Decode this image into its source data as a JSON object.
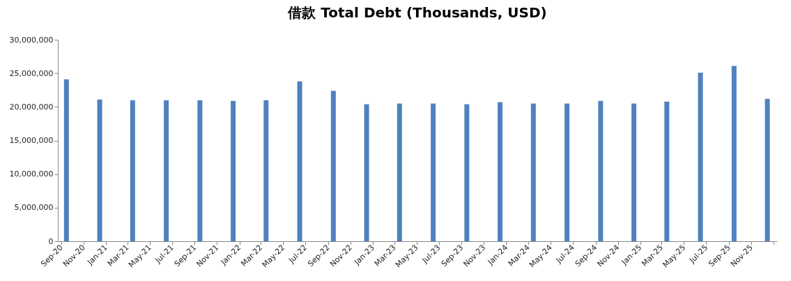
{
  "chart_data": {
    "type": "bar",
    "title": "借款 Total Debt (Thousands, USD)",
    "x": [
      "2020-09-15",
      "2020-12-15",
      "2021-03-15",
      "2021-06-15",
      "2021-09-15",
      "2021-12-15",
      "2022-03-15",
      "2022-06-15",
      "2022-09-15",
      "2022-12-15",
      "2023-03-15",
      "2023-06-15",
      "2023-09-15",
      "2023-12-15",
      "2024-03-15",
      "2024-06-15",
      "2024-09-15",
      "2024-12-15",
      "2025-03-15",
      "2025-06-15",
      "2025-09-15",
      "2025-12-15"
    ],
    "values": [
      24100000,
      21100000,
      21000000,
      21000000,
      21000000,
      20900000,
      21000000,
      23800000,
      22400000,
      20400000,
      20500000,
      20500000,
      20400000,
      20700000,
      20500000,
      20500000,
      20900000,
      20500000,
      20800000,
      25100000,
      26100000,
      21200000
    ],
    "color": "#4f81bd",
    "xlim": [
      "2020-09",
      "2026-01"
    ],
    "xticks": [
      {
        "value": "2020-09",
        "label": "Sep-20"
      },
      {
        "value": "2020-11",
        "label": "Nov-20"
      },
      {
        "value": "2021-01",
        "label": "Jan-21"
      },
      {
        "value": "2021-03",
        "label": "Mar-21"
      },
      {
        "value": "2021-05",
        "label": "May-21"
      },
      {
        "value": "2021-07",
        "label": "Jul-21"
      },
      {
        "value": "2021-09",
        "label": "Sep-21"
      },
      {
        "value": "2021-11",
        "label": "Nov-21"
      },
      {
        "value": "2022-01",
        "label": "Jan-22"
      },
      {
        "value": "2022-03",
        "label": "Mar-22"
      },
      {
        "value": "2022-05",
        "label": "May-22"
      },
      {
        "value": "2022-07",
        "label": "Jul-22"
      },
      {
        "value": "2022-09",
        "label": "Sep-22"
      },
      {
        "value": "2022-11",
        "label": "Nov-22"
      },
      {
        "value": "2023-01",
        "label": "Jan-23"
      },
      {
        "value": "2023-03",
        "label": "Mar-23"
      },
      {
        "value": "2023-05",
        "label": "May-23"
      },
      {
        "value": "2023-07",
        "label": "Jul-23"
      },
      {
        "value": "2023-09",
        "label": "Sep-23"
      },
      {
        "value": "2023-11",
        "label": "Nov-23"
      },
      {
        "value": "2024-01",
        "label": "Jan-24"
      },
      {
        "value": "2024-03",
        "label": "Mar-24"
      },
      {
        "value": "2024-05",
        "label": "May-24"
      },
      {
        "value": "2024-07",
        "label": "Jul-24"
      },
      {
        "value": "2024-09",
        "label": "Sep-24"
      },
      {
        "value": "2024-11",
        "label": "Nov-24"
      },
      {
        "value": "2025-01",
        "label": "Jan-25"
      },
      {
        "value": "2025-03",
        "label": "Mar-25"
      },
      {
        "value": "2025-05",
        "label": "May-25"
      },
      {
        "value": "2025-07",
        "label": "Jul-25"
      },
      {
        "value": "2025-09",
        "label": "Sep-25"
      },
      {
        "value": "2025-11",
        "label": "Nov-25"
      },
      {
        "value": "2026-01",
        "label": null
      }
    ],
    "ylim": [
      0,
      30000000
    ],
    "yticks": [
      {
        "value": 0,
        "label": "0"
      },
      {
        "value": 5000000,
        "label": "5,000,000"
      },
      {
        "value": 10000000,
        "label": "10,000,000"
      },
      {
        "value": 15000000,
        "label": "15,000,000"
      },
      {
        "value": 20000000,
        "label": "20,000,000"
      },
      {
        "value": 25000000,
        "label": "25,000,000"
      },
      {
        "value": 30000000,
        "label": "30,000,000"
      }
    ]
  }
}
